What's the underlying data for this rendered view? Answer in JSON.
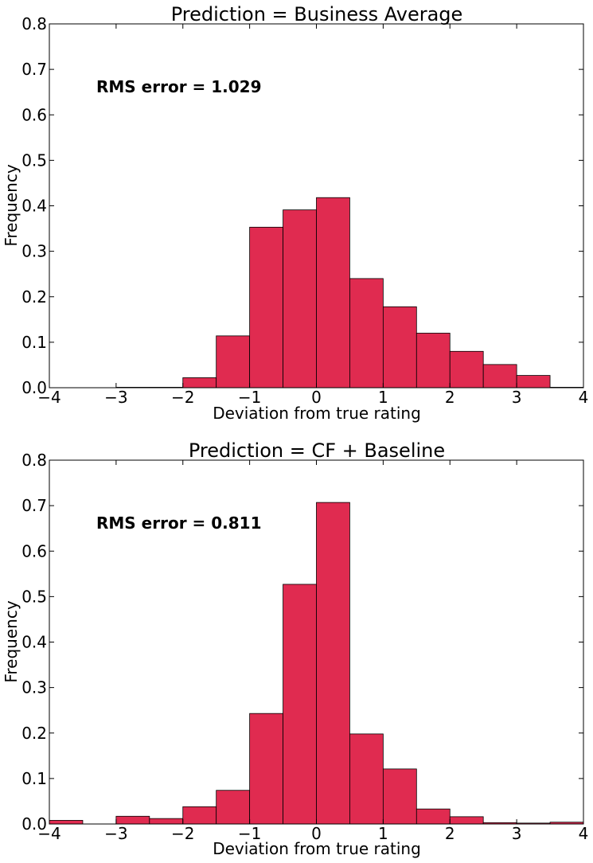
{
  "chart_data": [
    {
      "type": "bar",
      "title": "Prediction = Business Average",
      "xlabel": "Deviation from true rating",
      "ylabel": "Frequency",
      "annotation": "RMS error = 1.029",
      "xlim": [
        -4,
        4
      ],
      "ylim": [
        0,
        0.8
      ],
      "xticks": [
        -4,
        -3,
        -2,
        -1,
        0,
        1,
        2,
        3,
        4
      ],
      "xtick_labels": [
        "−4",
        "−3",
        "−2",
        "−1",
        "0",
        "1",
        "2",
        "3",
        "4"
      ],
      "yticks": [
        0.0,
        0.1,
        0.2,
        0.3,
        0.4,
        0.5,
        0.6,
        0.7,
        0.8
      ],
      "ytick_labels": [
        "0.0",
        "0.1",
        "0.2",
        "0.3",
        "0.4",
        "0.5",
        "0.6",
        "0.7",
        "0.8"
      ],
      "bin_width": 0.5,
      "bins": [
        -3.0,
        -2.5,
        -2.0,
        -1.5,
        -1.0,
        -0.5,
        0.0,
        0.5,
        1.0,
        1.5,
        2.0,
        2.5,
        3.0,
        3.5
      ],
      "values": [
        0.001,
        0.001,
        0.022,
        0.114,
        0.353,
        0.391,
        0.418,
        0.24,
        0.178,
        0.12,
        0.08,
        0.051,
        0.027,
        0.001
      ],
      "bar_color": "#e02b50",
      "grid": false
    },
    {
      "type": "bar",
      "title": "Prediction = CF + Baseline",
      "xlabel": "Deviation from true rating",
      "ylabel": "Frequency",
      "annotation": "RMS error = 0.811",
      "xlim": [
        -4,
        4
      ],
      "ylim": [
        0,
        0.8
      ],
      "xticks": [
        -4,
        -3,
        -2,
        -1,
        0,
        1,
        2,
        3,
        4
      ],
      "xtick_labels": [
        "−4",
        "−3",
        "−2",
        "−1",
        "0",
        "1",
        "2",
        "3",
        "4"
      ],
      "yticks": [
        0.0,
        0.1,
        0.2,
        0.3,
        0.4,
        0.5,
        0.6,
        0.7,
        0.8
      ],
      "ytick_labels": [
        "0.0",
        "0.1",
        "0.2",
        "0.3",
        "0.4",
        "0.5",
        "0.6",
        "0.7",
        "0.8"
      ],
      "bin_width": 0.5,
      "bins": [
        -4.0,
        -3.5,
        -3.0,
        -2.5,
        -2.0,
        -1.5,
        -1.0,
        -0.5,
        0.0,
        0.5,
        1.0,
        1.5,
        2.0,
        2.5,
        3.0,
        3.5
      ],
      "values": [
        0.008,
        0.0,
        0.017,
        0.012,
        0.038,
        0.074,
        0.243,
        0.527,
        0.707,
        0.198,
        0.121,
        0.033,
        0.016,
        0.003,
        0.002,
        0.004
      ],
      "bar_color": "#e02b50",
      "grid": false
    }
  ]
}
